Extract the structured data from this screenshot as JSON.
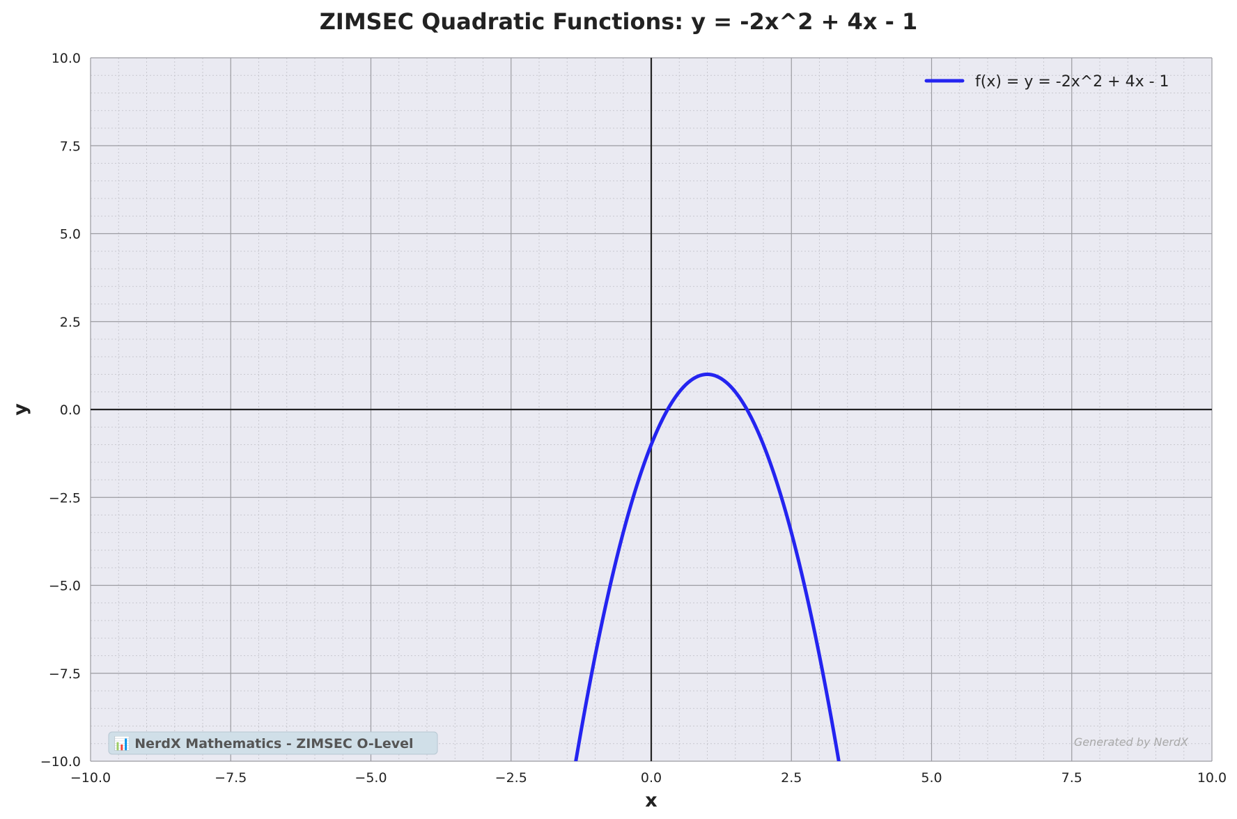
{
  "chart_data": {
    "type": "line",
    "title": "ZIMSEC Quadratic Functions: y = -2x^2 + 4x - 1",
    "xlabel": "x",
    "ylabel": "y",
    "xlim": [
      -10,
      10
    ],
    "ylim": [
      -10,
      10
    ],
    "x_ticks": [
      -10,
      -7.5,
      -5,
      -2.5,
      0,
      2.5,
      5,
      7.5,
      10
    ],
    "y_ticks": [
      -10,
      -7.5,
      -5,
      -2.5,
      0,
      2.5,
      5,
      7.5,
      10
    ],
    "x_tick_labels": [
      "−10.0",
      "−7.5",
      "−5.0",
      "−2.5",
      "0.0",
      "2.5",
      "5.0",
      "7.5",
      "10.0"
    ],
    "y_tick_labels": [
      "−10.0",
      "−7.5",
      "−5.0",
      "−2.5",
      "0.0",
      "2.5",
      "5.0",
      "7.5",
      "10.0"
    ],
    "grid": true,
    "minor_grid": true,
    "legend_position": "top-right",
    "series": [
      {
        "name": "f(x) = y = -2x^2 + 4x - 1",
        "function": "-2x^2 + 4x - 1",
        "coefficients": {
          "a": -2,
          "b": 4,
          "c": -1
        },
        "color": "#2424f0",
        "x": [
          -1.37,
          -1,
          -0.5,
          0,
          0.29,
          0.5,
          1,
          1.5,
          1.71,
          2,
          2.5,
          3,
          3.37
        ],
        "y": [
          -10,
          -7,
          -3.5,
          -1,
          0,
          0.5,
          1,
          0.5,
          0,
          -1,
          -3.5,
          -7,
          -10
        ]
      }
    ],
    "annotations": {
      "badge": "📊 NerdX Mathematics - ZIMSEC O-Level",
      "credit": "Generated by NerdX"
    },
    "colors": {
      "plot_background": "#eaeaf2",
      "major_grid": "#9a9aa0",
      "minor_grid": "#c8c8cf",
      "axis_line": "#222222",
      "badge_background": "#d0dfe8"
    }
  }
}
